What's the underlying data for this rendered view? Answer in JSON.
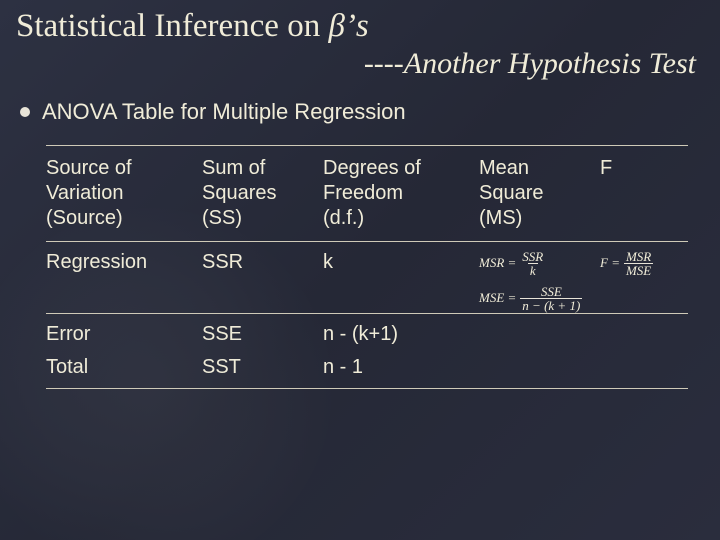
{
  "colors": {
    "background": "#2a2e3a",
    "text": "#e8e4d8",
    "rule": "#cfcab8"
  },
  "typography": {
    "title_font": "Times New Roman",
    "body_font": "Arial",
    "title_size_pt": 33,
    "subtitle_size_pt": 30,
    "bullet_size_pt": 22,
    "table_size_pt": 20,
    "equation_size_pt": 13
  },
  "title": {
    "prefix": "Statistical Inference on ",
    "symbol": "β’s"
  },
  "subtitle": "----Another Hypothesis Test",
  "bullet": "ANOVA Table for Multiple Regression",
  "table": {
    "headers": {
      "source_l1": "Source of",
      "source_l2": "Variation",
      "source_l3": "(Source)",
      "ss_l1": "Sum of",
      "ss_l2": "Squares",
      "ss_l3": "(SS)",
      "df_l1": "Degrees of",
      "df_l2": "Freedom",
      "df_l3": "(d.f.)",
      "ms_l1": "Mean",
      "ms_l2": "Square",
      "ms_l3": "(MS)",
      "f": "F"
    },
    "rows": {
      "regression": {
        "source": "Regression",
        "ss": "SSR",
        "df": "k"
      },
      "error": {
        "source": "Error",
        "ss": "SSE",
        "df": "n - (k+1)"
      },
      "total": {
        "source": "Total",
        "ss": "SST",
        "df": "n - 1"
      }
    },
    "equations": {
      "msr_lhs": "MSR =",
      "msr_num": "SSR",
      "msr_den": "k",
      "mse_lhs": "MSE =",
      "mse_num": "SSE",
      "mse_den": "n − (k + 1)",
      "f_lhs": "F =",
      "f_num": "MSR",
      "f_den": "MSE"
    }
  }
}
